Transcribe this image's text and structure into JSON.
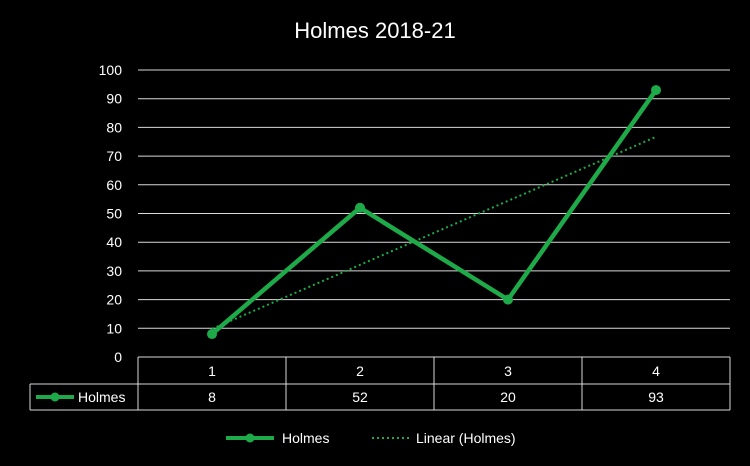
{
  "chart_data": {
    "type": "line",
    "title": "Holmes 2018-21",
    "categories": [
      "1",
      "2",
      "3",
      "4"
    ],
    "series": [
      {
        "name": "Holmes",
        "values": [
          8,
          52,
          20,
          93
        ],
        "color": "#1faa4a"
      }
    ],
    "trendline": {
      "label": "Linear (Holmes)",
      "type": "linear",
      "color": "#1faa4a"
    },
    "ylim": [
      0,
      100
    ],
    "yticks": [
      0,
      10,
      20,
      30,
      40,
      50,
      60,
      70,
      80,
      90,
      100
    ],
    "grid": true,
    "data_table": true,
    "legend": "bottom"
  }
}
